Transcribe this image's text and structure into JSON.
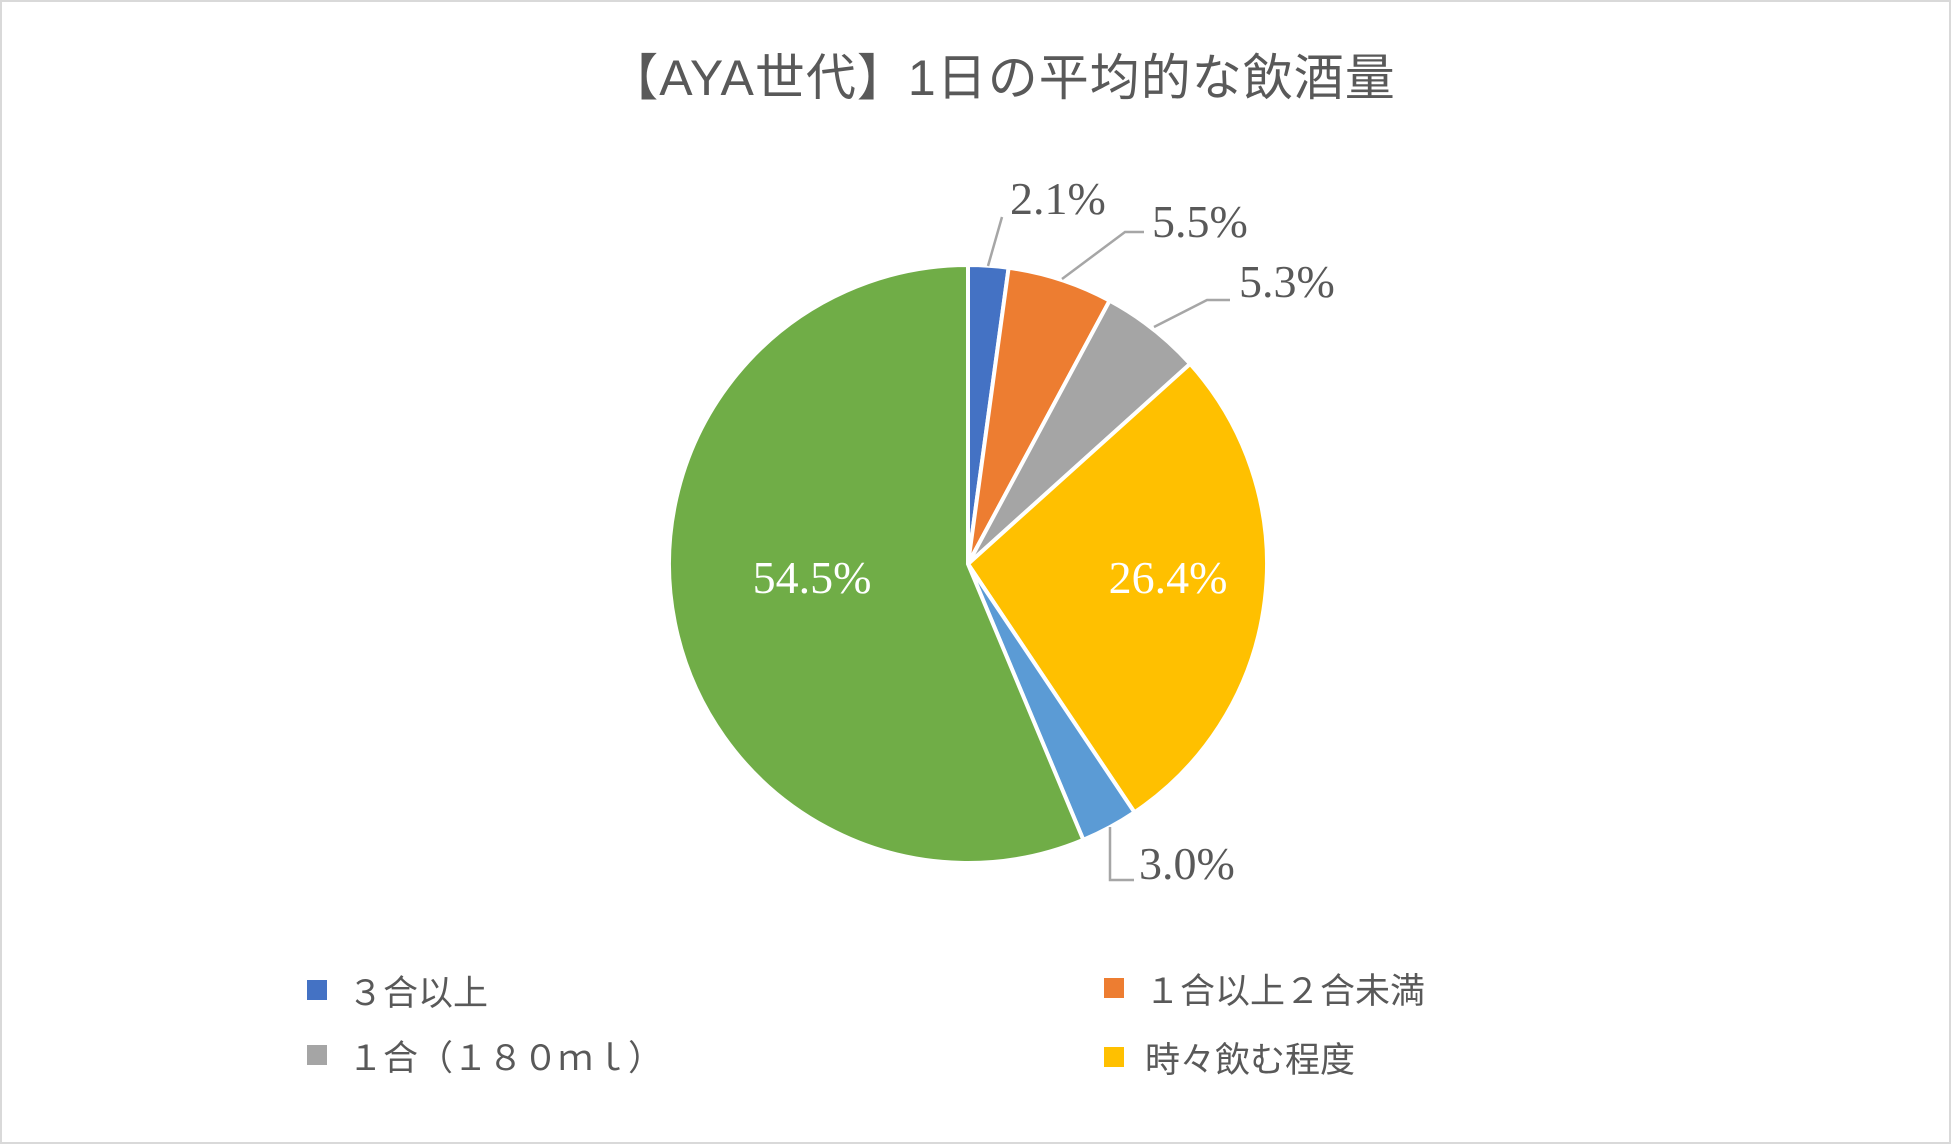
{
  "page": {
    "background": "#FFFFFF",
    "border_color": "#D9D9D9",
    "text_color": "#595959"
  },
  "chart_data": {
    "type": "pie",
    "title": "【AYA世代】1日の平均的な飲酒量",
    "start_angle_deg": 0,
    "direction": "clockwise",
    "legend_position": "bottom, two columns",
    "leader_line_color": "#A6A6A6",
    "label_color_outside": "#595959",
    "label_color_inside": "#FFFFFF",
    "slices": [
      {
        "name": "３合以上",
        "value": 2.1,
        "label": "2.1%",
        "color": "#4472C4",
        "label_placement": "outside"
      },
      {
        "name": "１合以上２合未満",
        "value": 5.5,
        "label": "5.5%",
        "color": "#ED7D31",
        "label_placement": "outside"
      },
      {
        "name": "１合（１８０ｍｌ）",
        "value": 5.3,
        "label": "5.3%",
        "color": "#A5A5A5",
        "label_placement": "outside"
      },
      {
        "name": "時々飲む程度",
        "value": 26.4,
        "label": "26.4%",
        "color": "#FFC000",
        "label_placement": "inside"
      },
      {
        "name": "",
        "value": 3.0,
        "label": "3.0%",
        "color": "#5B9BD5",
        "label_placement": "outside"
      },
      {
        "name": "",
        "value": 54.5,
        "label": "54.5%",
        "color": "#70AD47",
        "label_placement": "inside"
      }
    ],
    "legend_visible_items": [
      "３合以上",
      "１合以上２合未満",
      "１合（１８０ｍｌ）",
      "時々飲む程度"
    ]
  }
}
